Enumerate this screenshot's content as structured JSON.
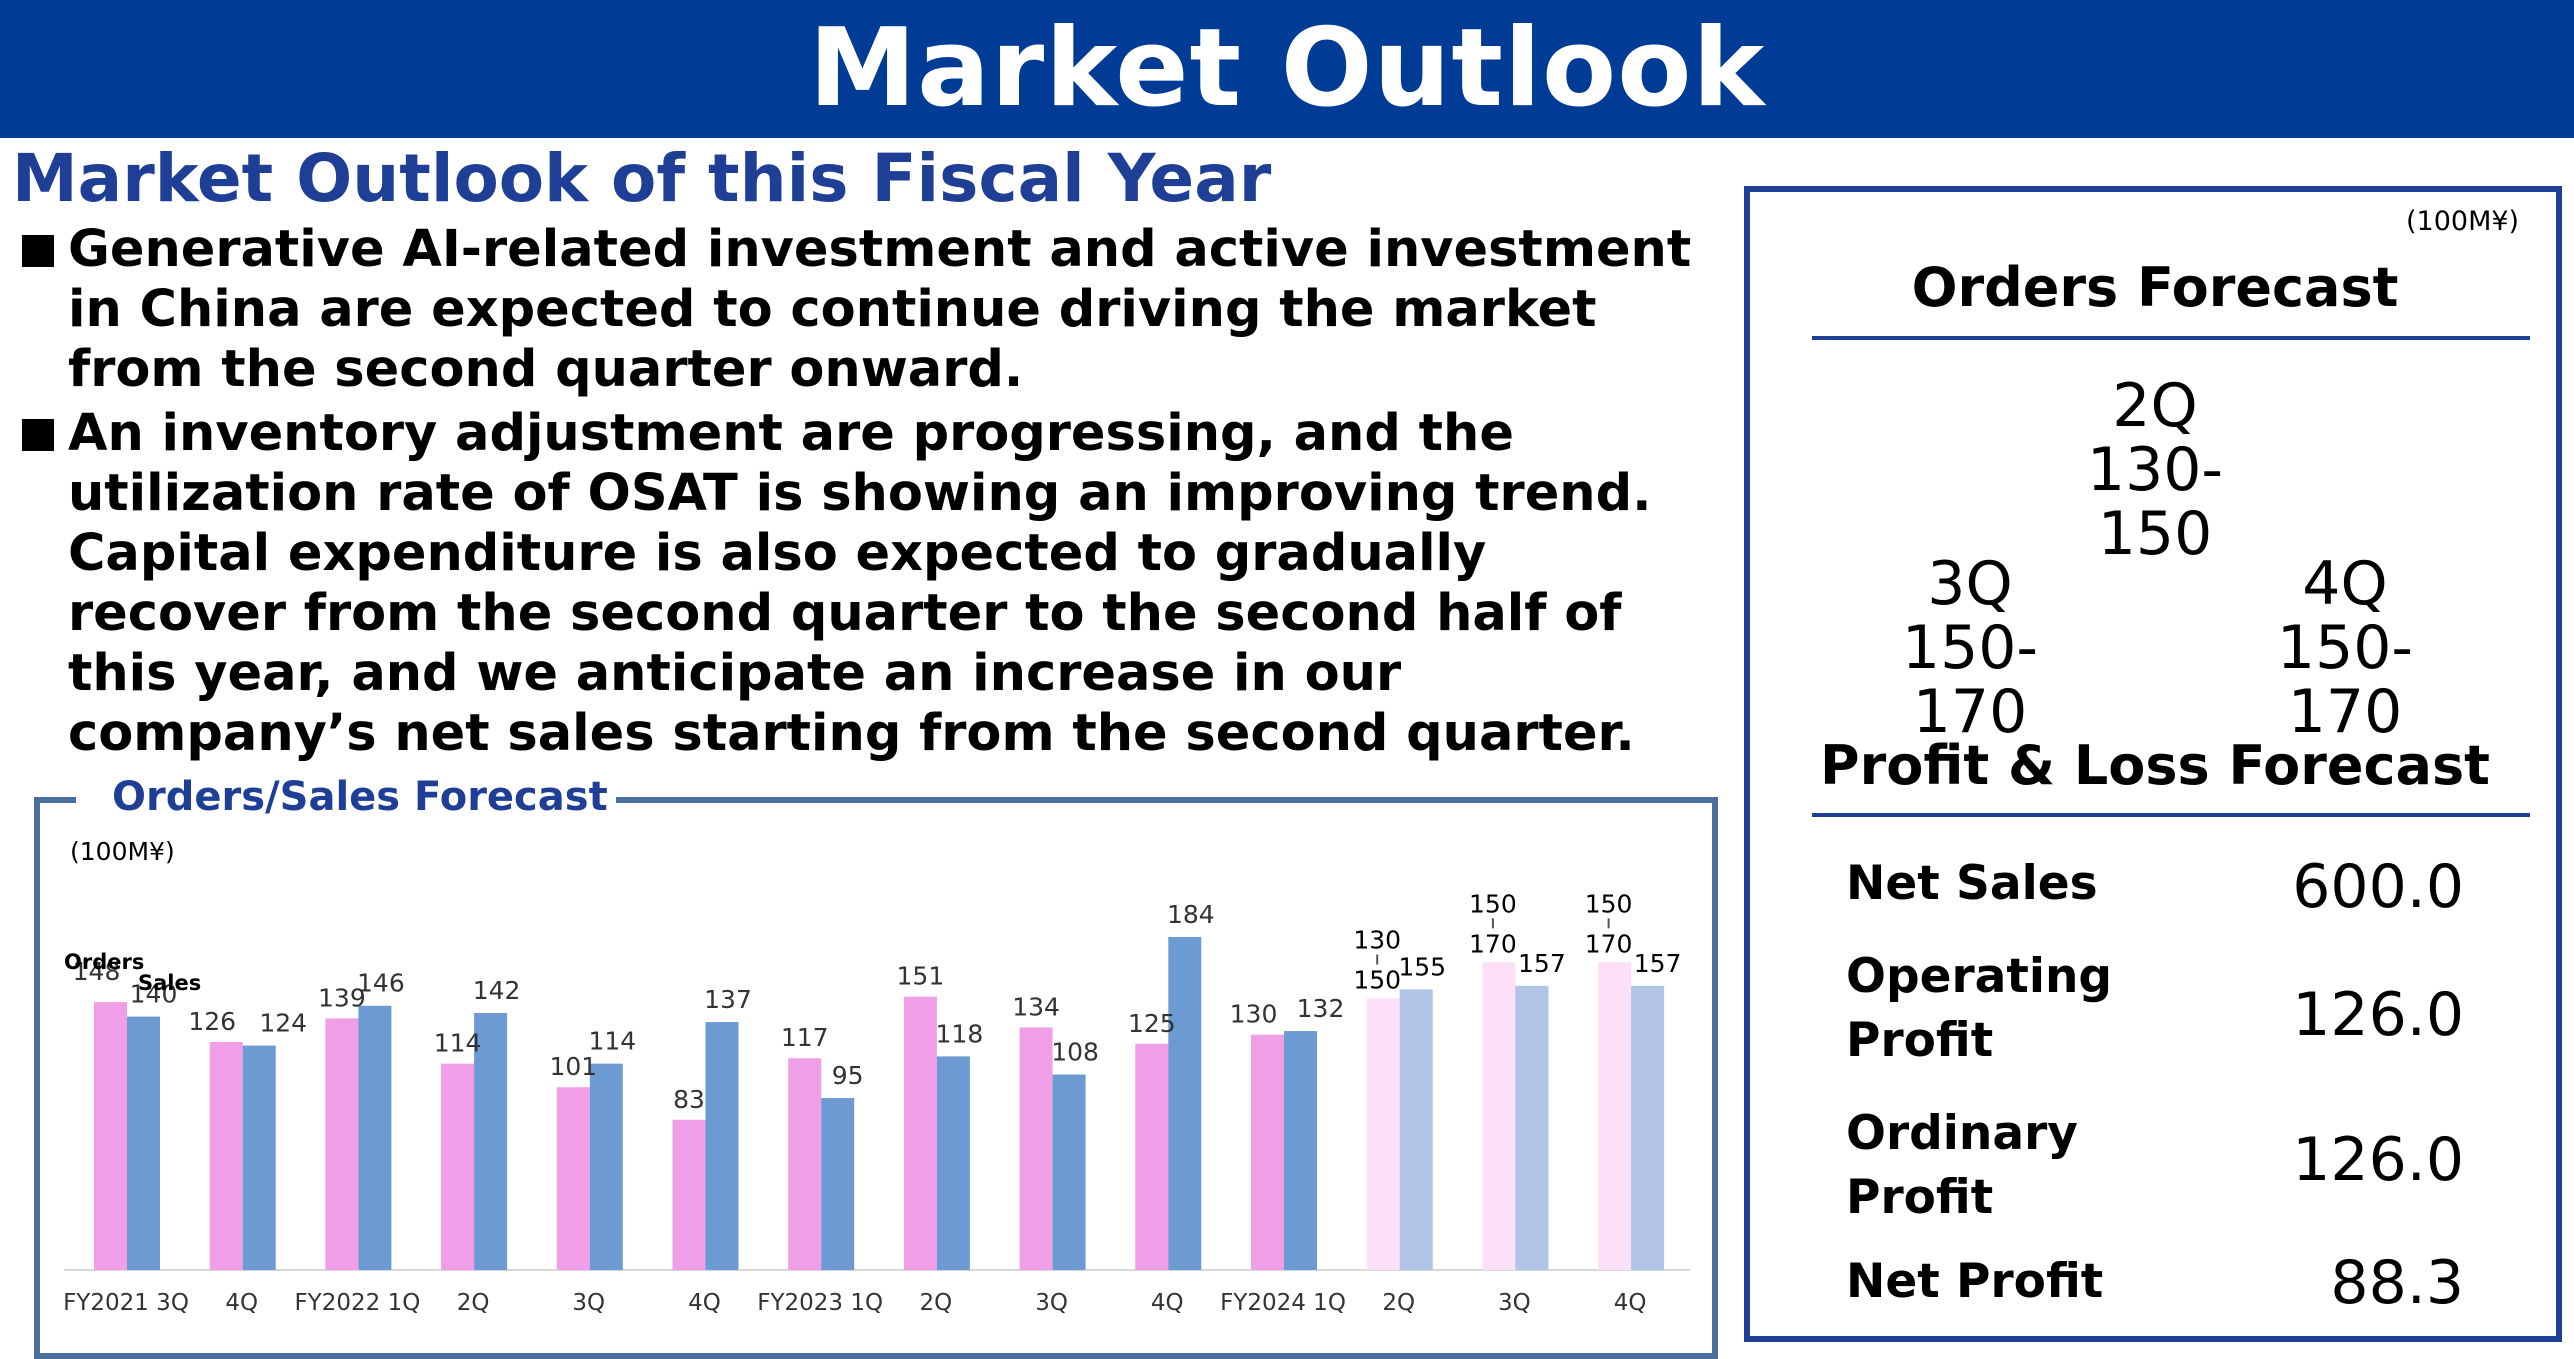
{
  "header": {
    "title": "Market Outlook"
  },
  "section": {
    "title": "Market Outlook of this Fiscal Year"
  },
  "bullets": [
    "Generative AI-related investment and active investment in China are expected to continue driving the market from the second quarter onward.",
    "An inventory adjustment are progressing, and the utilization rate of OSAT is showing an improving trend. Capital expenditure is also expected to gradually recover from the second quarter to the second half of this year, and we anticipate an increase in our company’s net sales starting from the second quarter."
  ],
  "chart_data": {
    "type": "bar",
    "title": "Orders/Sales Forecast",
    "unit": "(100M¥)",
    "categories": [
      "FY2021 3Q",
      "4Q",
      "FY2022 1Q",
      "2Q",
      "3Q",
      "4Q",
      "FY2023 1Q",
      "2Q",
      "3Q",
      "4Q",
      "FY2024 1Q",
      "2Q",
      "3Q",
      "4Q"
    ],
    "series": [
      {
        "name": "Orders",
        "values": [
          148,
          126,
          139,
          114,
          101,
          83,
          117,
          151,
          134,
          125,
          130,
          150,
          170,
          170
        ],
        "color": "#f19ee8",
        "forecast_color": "#fbe0f8"
      },
      {
        "name": "Sales",
        "values": [
          140,
          124,
          146,
          142,
          114,
          137,
          95,
          118,
          108,
          184,
          132,
          155,
          157,
          157
        ],
        "color": "#6b9bd2",
        "forecast_color": "#b1c3e6"
      }
    ],
    "orders_forecast_low": [
      null,
      null,
      null,
      null,
      null,
      null,
      null,
      null,
      null,
      null,
      null,
      130,
      150,
      150
    ],
    "forecast_from_index": 11,
    "ylim": [
      0,
      200
    ]
  },
  "panel": {
    "unit": "(100M¥)",
    "orders_title": "Orders Forecast",
    "q2": {
      "label": "2Q",
      "range": "130-150"
    },
    "q3": {
      "label": "3Q",
      "range": "150-170"
    },
    "q4": {
      "label": "4Q",
      "range": "150-170"
    },
    "pl_title": "Profit & Loss Forecast",
    "pl": [
      {
        "label": "Net Sales",
        "value": "600.0"
      },
      {
        "label": "Operating Profit",
        "value": "126.0"
      },
      {
        "label": "Ordinary Profit",
        "value": "126.0"
      },
      {
        "label": "Net Profit",
        "value": "88.3"
      }
    ]
  }
}
